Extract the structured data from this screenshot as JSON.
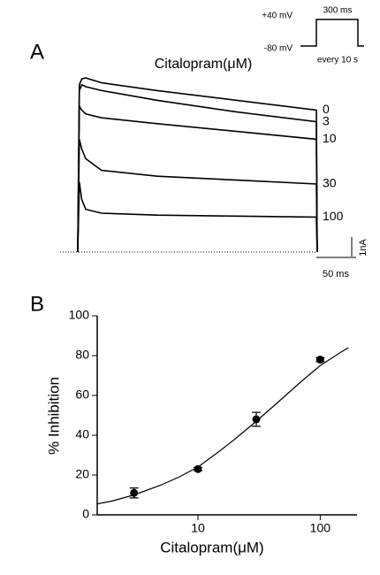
{
  "chart_data": [
    {
      "type": "trace",
      "panel": "A",
      "title": "Citalopram(μM)",
      "protocol": {
        "top_label": "+40 mV",
        "bottom_label": "-80 mV",
        "duration_label": "300 ms",
        "interval_label": "every 10 s"
      },
      "x": [
        0,
        2,
        5,
        10,
        30,
        100,
        200,
        300,
        301
      ],
      "series": [
        {
          "name": "0",
          "color": "#000000",
          "values": [
            0,
            8.6,
            8.9,
            8.95,
            8.7,
            8.3,
            7.8,
            7.3,
            0
          ]
        },
        {
          "name": "3",
          "color": "#000000",
          "values": [
            0,
            8.3,
            8.6,
            8.5,
            8.3,
            7.8,
            7.2,
            6.7,
            0
          ]
        },
        {
          "name": "10",
          "color": "#000000",
          "values": [
            0,
            7.5,
            7.3,
            7.1,
            6.9,
            6.6,
            6.2,
            5.8,
            0
          ]
        },
        {
          "name": "30",
          "color": "#000000",
          "values": [
            0,
            5.8,
            5.3,
            4.8,
            4.2,
            3.9,
            3.7,
            3.5,
            0
          ]
        },
        {
          "name": "100",
          "color": "#000000",
          "values": [
            0,
            3.6,
            2.7,
            2.2,
            2.0,
            1.9,
            1.85,
            1.8,
            0
          ]
        }
      ],
      "scale_bars": [
        {
          "value": 1,
          "label": "1nA"
        },
        {
          "value": 50,
          "label": "50 ms"
        }
      ]
    },
    {
      "type": "scatter",
      "panel": "B",
      "xlabel": "Citalopram(μM)",
      "ylabel": "% Inhibition",
      "log_x": true,
      "x": [
        3,
        10,
        30,
        100
      ],
      "values": [
        11,
        23,
        48,
        78
      ],
      "errors": [
        2.5,
        0.8,
        3.5,
        1
      ],
      "color": "#000000",
      "fit": {
        "x": [
          1.5,
          2,
          3,
          5,
          7,
          10,
          15,
          20,
          30,
          50,
          70,
          100,
          150,
          170
        ],
        "y": [
          5.5,
          7,
          10,
          15,
          19,
          24,
          32,
          38,
          47,
          59,
          67,
          75,
          82,
          84
        ]
      },
      "xlim": [
        1.5,
        200
      ],
      "xticks": [
        10,
        100
      ],
      "ylim": [
        0,
        100
      ],
      "yticks": [
        0,
        20,
        40,
        60,
        80,
        100
      ]
    }
  ]
}
